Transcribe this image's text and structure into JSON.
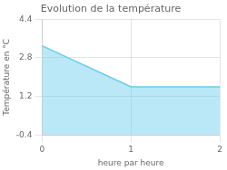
{
  "chart_data": {
    "type": "area",
    "title": "Evolution de la température",
    "xlabel": "heure par heure",
    "ylabel": "Température en °C",
    "x": [
      0,
      1,
      2
    ],
    "values": [
      3.3,
      1.6,
      1.6
    ],
    "color": "#66ccee",
    "xlim": [
      0,
      2
    ],
    "ylim": [
      -0.4,
      4.4
    ],
    "xticks": [
      0,
      1,
      2
    ],
    "yticks": [
      -0.4,
      1.2,
      2.8,
      4.4
    ],
    "grid": true
  }
}
